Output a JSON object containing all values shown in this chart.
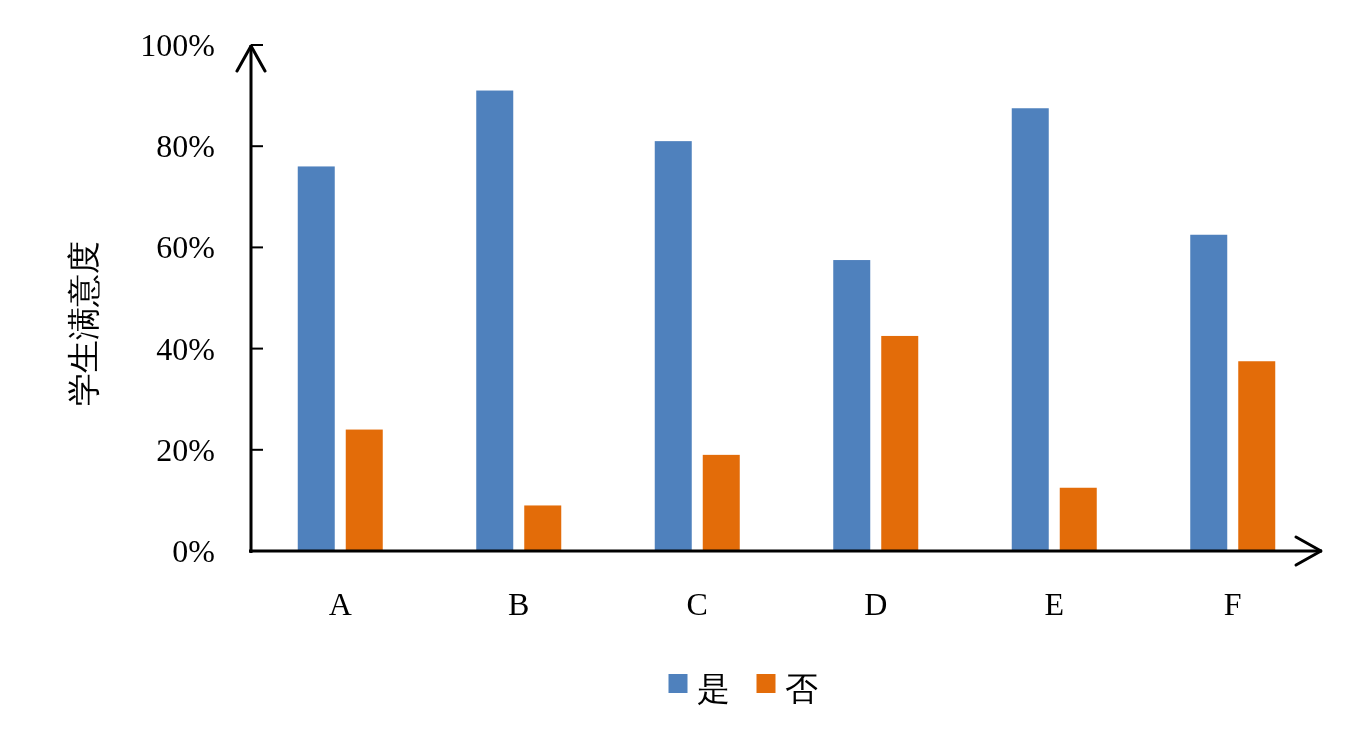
{
  "chart_data": {
    "type": "bar",
    "ylabel": "学生满意度",
    "categories": [
      "A",
      "B",
      "C",
      "D",
      "E",
      "F"
    ],
    "series": [
      {
        "name": "是",
        "color": "#4f81bd",
        "values": [
          76,
          91,
          81,
          57.5,
          87.5,
          62.5
        ]
      },
      {
        "name": "否",
        "color": "#e36c09",
        "values": [
          24,
          9,
          19,
          42.5,
          12.5,
          37.5
        ]
      }
    ],
    "ylim": [
      0,
      100
    ],
    "yticks": [
      {
        "value": 0,
        "label": "0%"
      },
      {
        "value": 20,
        "label": "20%"
      },
      {
        "value": 40,
        "label": "40%"
      },
      {
        "value": 60,
        "label": "60%"
      },
      {
        "value": 80,
        "label": "80%"
      },
      {
        "value": 100,
        "label": "100%"
      }
    ],
    "grid": false,
    "legend": "bottom"
  }
}
